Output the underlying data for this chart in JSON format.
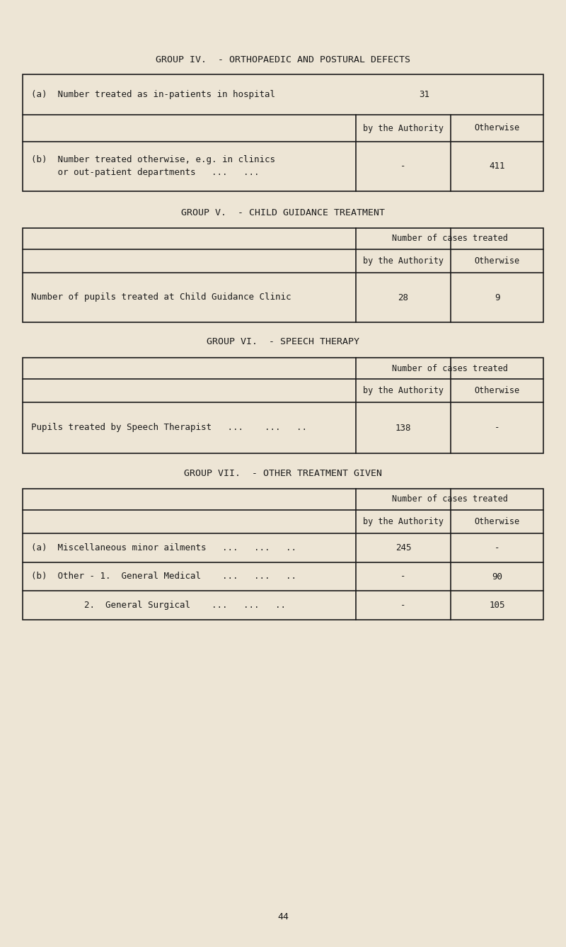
{
  "bg_color": "#ede5d5",
  "text_color": "#1a1a1a",
  "line_color": "#1a1a1a",
  "page_number": "44",
  "group4": {
    "title": "GROUP IV.  - ORTHOPAEDIC AND POSTURAL DEFECTS",
    "row_a_label": "(a)  Number treated as in-patients in hospital",
    "row_a_value": "31",
    "col1_header": "by the Authority",
    "col2_header": "Otherwise",
    "row_b_label1": "(b)  Number treated otherwise, e.g. in clinics",
    "row_b_label2": "     or out-patient departments   ...   ...",
    "row_b_col1": "-",
    "row_b_col2": "411"
  },
  "group5": {
    "title": "GROUP V.  - CHILD GUIDANCE TREATMENT",
    "header_span": "Number of cases treated",
    "col1_header": "by the Authority",
    "col2_header": "Otherwise",
    "row_label": "Number of pupils treated at Child Guidance Clinic",
    "row_col1": "28",
    "row_col2": "9"
  },
  "group6": {
    "title": "GROUP VI.  - SPEECH THERAPY",
    "header_span": "Number of cases treated",
    "col1_header": "by the Authority",
    "col2_header": "Otherwise",
    "row_label": "Pupils treated by Speech Therapist   ...    ...   ..",
    "row_col1": "138",
    "row_col2": "-"
  },
  "group7": {
    "title": "GROUP VII.  - OTHER TREATMENT GIVEN",
    "header_span": "Number of cases treated",
    "col1_header": "by the Authority",
    "col2_header": "Otherwise",
    "row_a_label": "(a)  Miscellaneous minor ailments   ...   ...   ..",
    "row_a_col1": "245",
    "row_a_col2": "-",
    "row_b1_label": "(b)  Other - 1.  General Medical    ...   ...   ..",
    "row_b1_col1": "-",
    "row_b1_col2": "90",
    "row_b2_label": "          2.  General Surgical    ...   ...   ..",
    "row_b2_col1": "-",
    "row_b2_col2": "105"
  }
}
